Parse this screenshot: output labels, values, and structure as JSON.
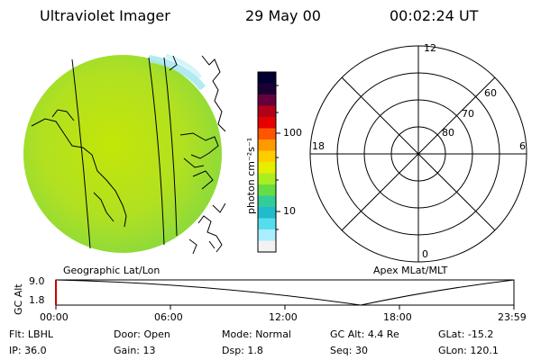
{
  "header": {
    "title": "Ultraviolet Imager",
    "date": "29 May 00",
    "time": "00:02:24 UT"
  },
  "colorbar": {
    "label": "photon cm⁻²s⁻¹",
    "ticks": [
      "100",
      "10"
    ],
    "colors": [
      "#000033",
      "#1a0033",
      "#66003d",
      "#b3001a",
      "#e60000",
      "#ff5500",
      "#ff9900",
      "#ffcc00",
      "#e6ee00",
      "#aaee22",
      "#66dd44",
      "#33cc99",
      "#22bbcc",
      "#55ddee",
      "#aaeeff",
      "#f2f2f2"
    ]
  },
  "left_map": {
    "label": "Geographic Lat/Lon"
  },
  "polar": {
    "label": "Apex MLat/MLT",
    "mlt_labels": {
      "top": "12",
      "left": "18",
      "right": "6",
      "bottom": "0"
    },
    "mlat_labels": [
      "60",
      "70",
      "80"
    ]
  },
  "timeline": {
    "ylabel": "GC Alt",
    "y_ticks": [
      "9.0",
      "1.8"
    ],
    "x_ticks": [
      "00:00",
      "06:00",
      "12:00",
      "18:00",
      "23:59"
    ]
  },
  "info_rows": [
    [
      {
        "label": "Flt:",
        "value": "LBHL"
      },
      {
        "label": "Door:",
        "value": "Open"
      },
      {
        "label": "Mode:",
        "value": "Normal"
      },
      {
        "label": "GC Alt:",
        "value": "4.4 Re"
      },
      {
        "label": "GLat:",
        "value": "-15.2"
      }
    ],
    [
      {
        "label": "IP:",
        "value": "36.0"
      },
      {
        "label": "Gain:",
        "value": "13"
      },
      {
        "label": "Dsp:",
        "value": "1.8"
      },
      {
        "label": "Seq:",
        "value": "30"
      },
      {
        "label": "GLon:",
        "value": "120.1"
      }
    ]
  ]
}
